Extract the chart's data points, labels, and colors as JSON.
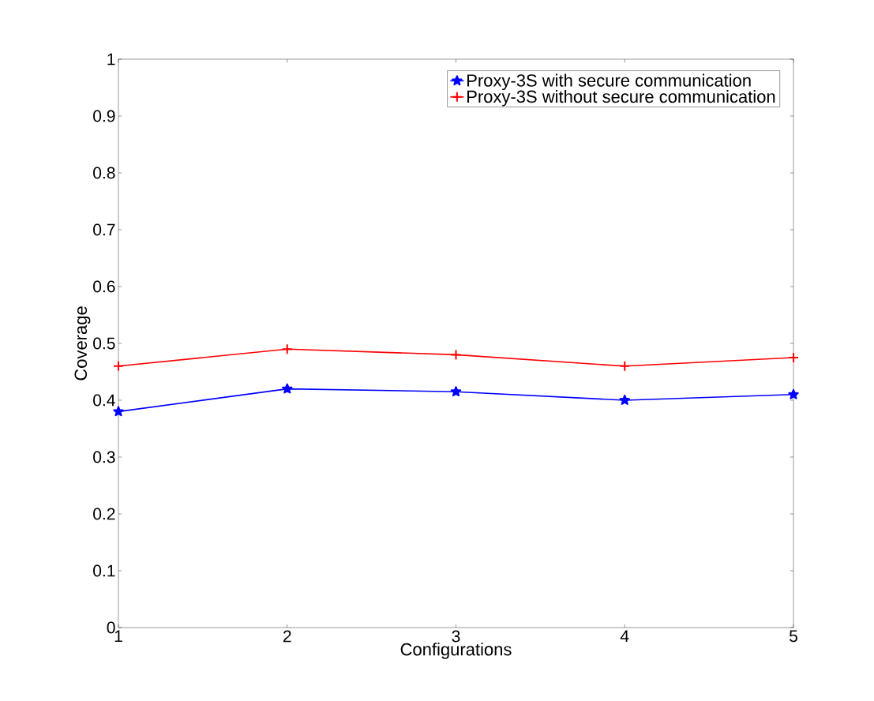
{
  "chart_data": {
    "type": "line",
    "xlabel": "Configurations",
    "ylabel": "Coverage",
    "x": [
      1,
      2,
      3,
      4,
      5
    ],
    "xlim": [
      1,
      5
    ],
    "xticks": [
      1,
      2,
      3,
      4,
      5
    ],
    "ylim": [
      0,
      1
    ],
    "yticks": [
      0,
      0.1,
      0.2,
      0.3,
      0.4,
      0.5,
      0.6,
      0.7,
      0.8,
      0.9,
      1
    ],
    "legend": "top right",
    "line_style": "solid",
    "series": [
      {
        "name": "Proxy-3S with secure communication",
        "color": "#0000ff",
        "marker": "star",
        "values": [
          0.38,
          0.42,
          0.415,
          0.4,
          0.41
        ]
      },
      {
        "name": "Proxy-3S without secure communication",
        "color": "#ff0000",
        "marker": "cross",
        "values": [
          0.46,
          0.49,
          0.48,
          0.46,
          0.475
        ]
      }
    ]
  }
}
